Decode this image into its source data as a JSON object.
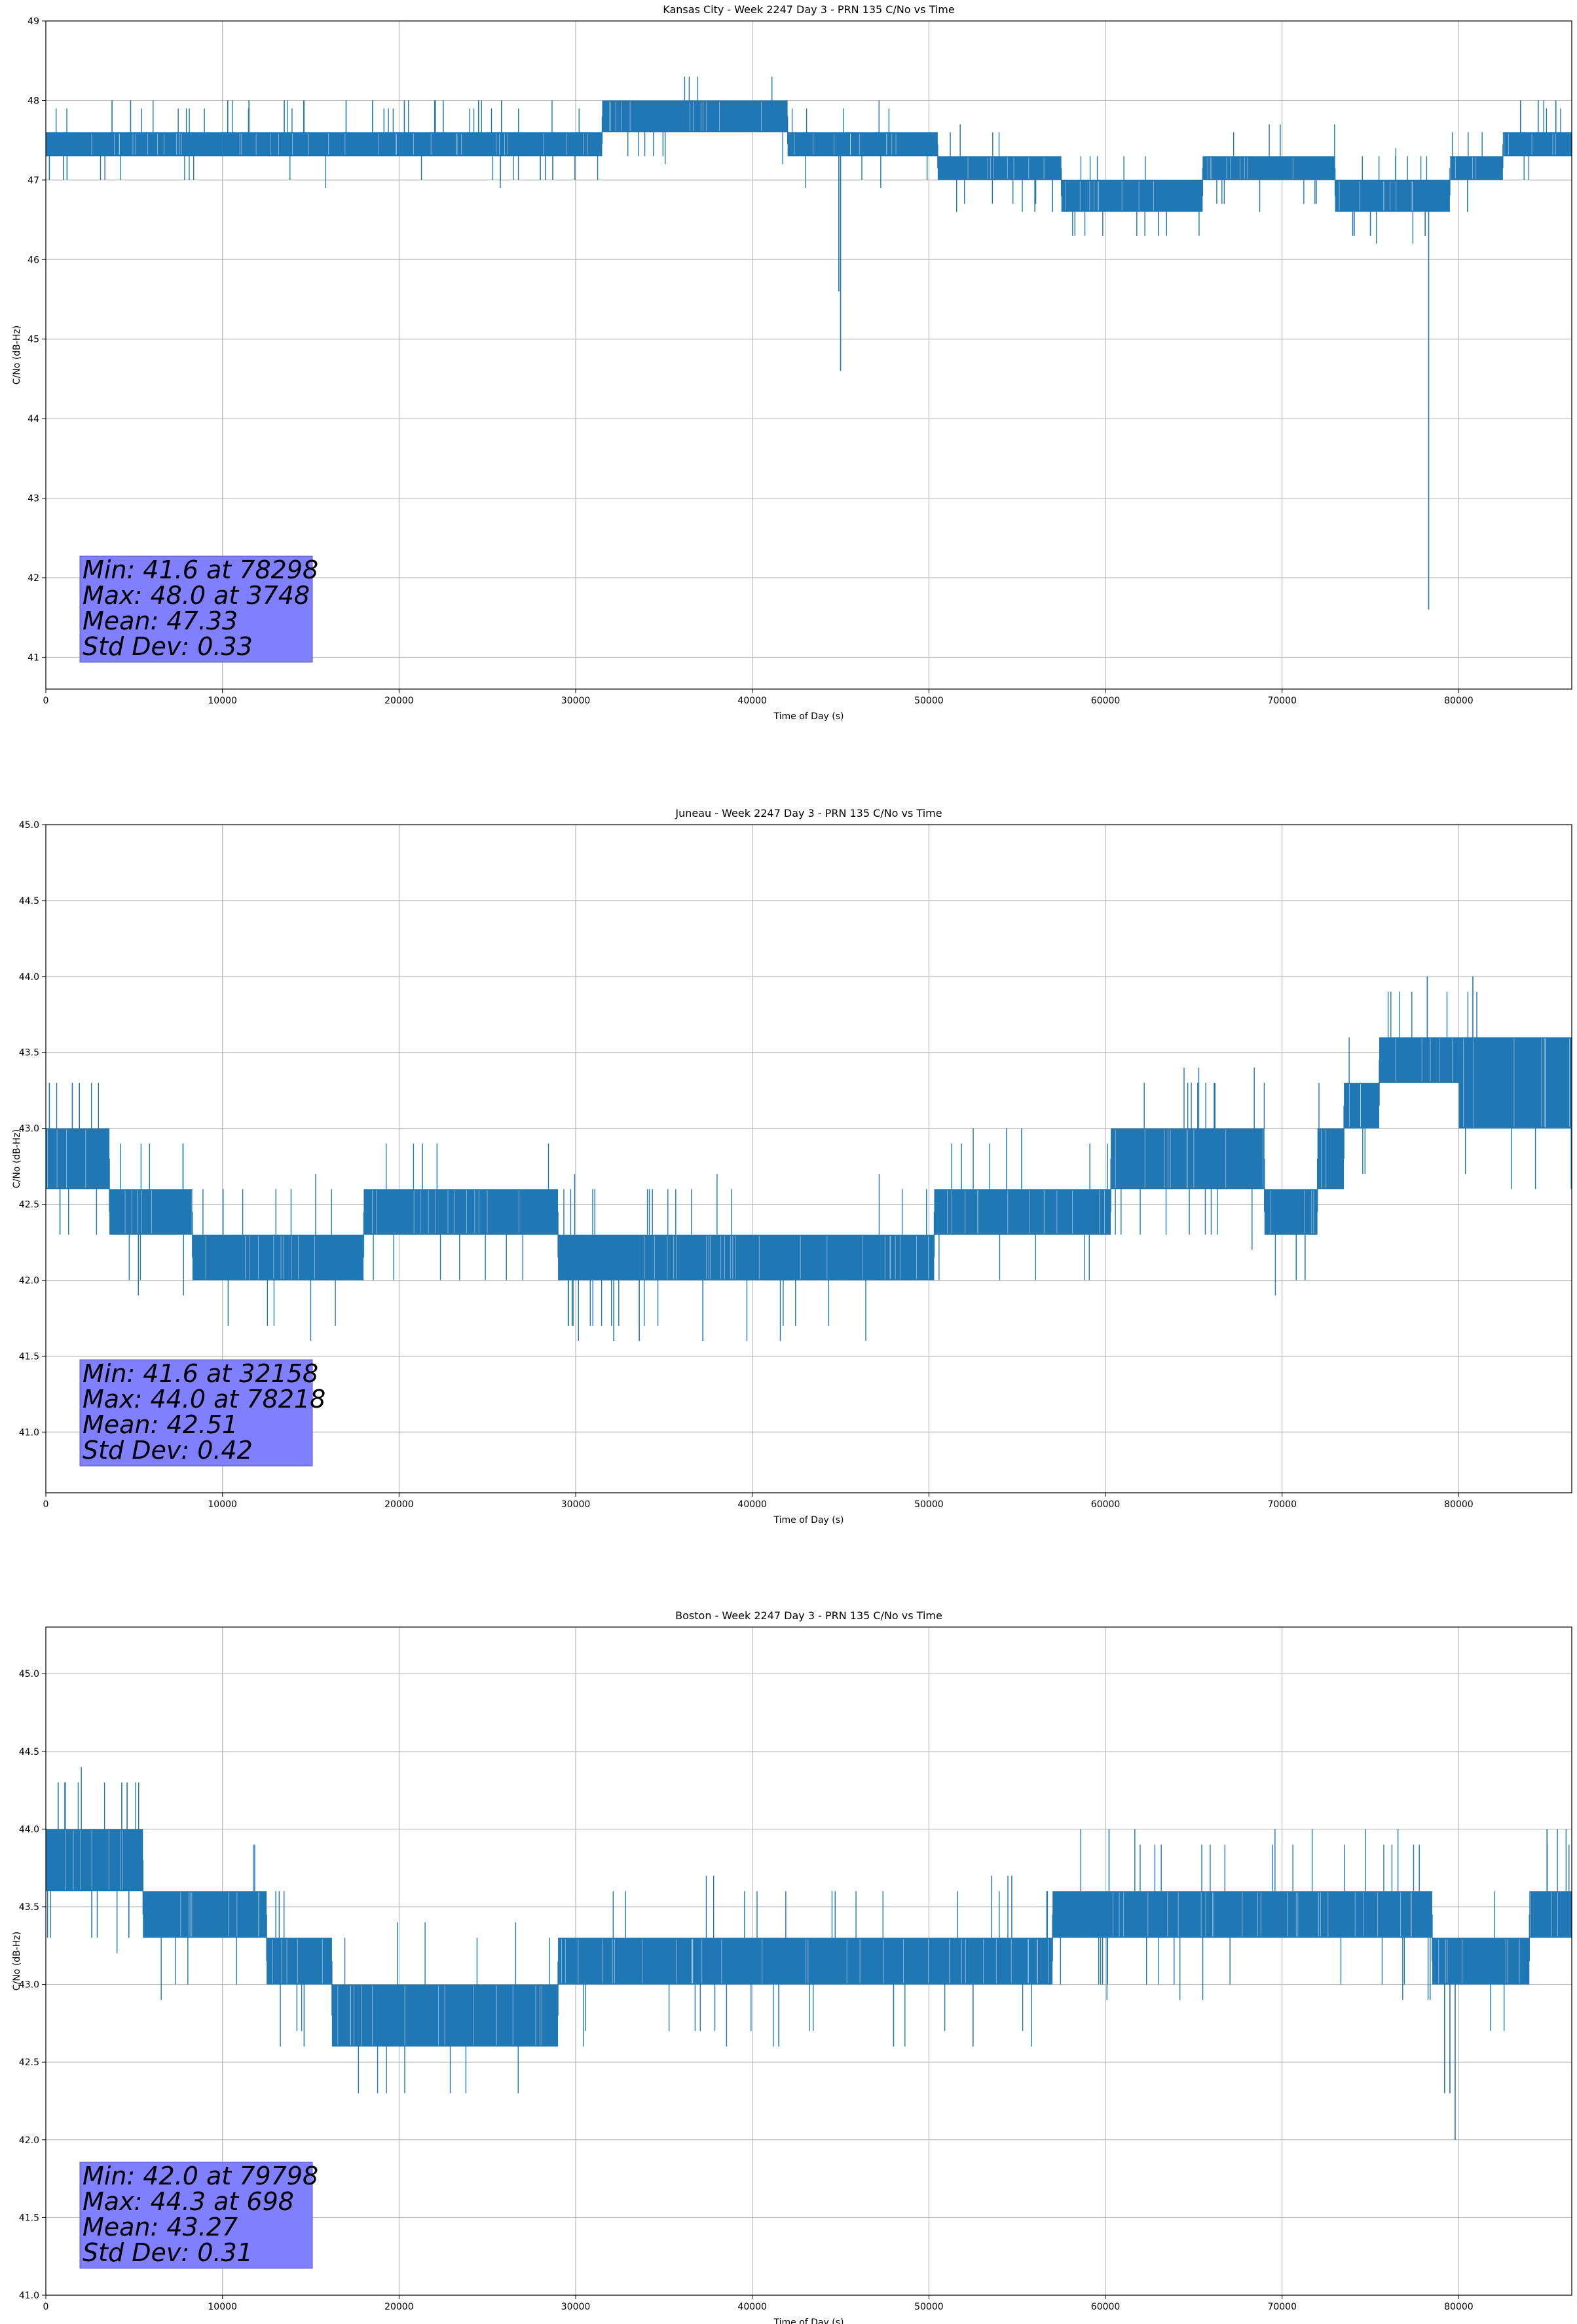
{
  "chart_data": [
    {
      "type": "line",
      "title": "Kansas City - Week 2247 Day 3 - PRN 135 C/No vs Time",
      "xlabel": "Time of Day (s)",
      "ylabel": "C/No (dB-Hz)",
      "xlim": [
        0,
        86400
      ],
      "ylim": [
        40.6,
        49
      ],
      "xticks": [
        0,
        10000,
        20000,
        30000,
        40000,
        50000,
        60000,
        70000,
        80000
      ],
      "yticks": [
        41,
        42,
        43,
        44,
        45,
        46,
        47,
        48,
        49
      ],
      "grid": true,
      "line_color": "#1f77b4",
      "stats_box_color": "#8080ff",
      "stats": [
        "Min: 41.6 at 78298",
        "Max: 48.0 at 3748",
        "Mean: 47.33",
        "Std Dev: 0.33"
      ],
      "bands": [
        {
          "x": [
            0,
            10000
          ],
          "y": [
            47.3,
            47.6
          ]
        },
        {
          "x": [
            10000,
            20000
          ],
          "y": [
            47.3,
            47.6
          ]
        },
        {
          "x": [
            20000,
            31500
          ],
          "y": [
            47.3,
            47.6
          ]
        },
        {
          "x": [
            31500,
            42000
          ],
          "y": [
            47.6,
            48.0
          ]
        },
        {
          "x": [
            42000,
            50500
          ],
          "y": [
            47.3,
            47.6
          ]
        },
        {
          "x": [
            50500,
            57500
          ],
          "y": [
            47.0,
            47.3
          ]
        },
        {
          "x": [
            57500,
            65500
          ],
          "y": [
            46.6,
            47.0
          ]
        },
        {
          "x": [
            65500,
            73000
          ],
          "y": [
            47.0,
            47.3
          ]
        },
        {
          "x": [
            73000,
            79500
          ],
          "y": [
            46.6,
            47.0
          ]
        },
        {
          "x": [
            79500,
            82500
          ],
          "y": [
            47.0,
            47.3
          ]
        },
        {
          "x": [
            82500,
            86400
          ],
          "y": [
            47.3,
            47.6
          ]
        }
      ],
      "spikes_up": [
        {
          "x": 3748,
          "y": 48.0
        },
        {
          "x": 4800,
          "y": 48.0
        },
        {
          "x": 10300,
          "y": 48.0
        },
        {
          "x": 11500,
          "y": 48.0
        },
        {
          "x": 13500,
          "y": 48.0
        },
        {
          "x": 14600,
          "y": 48.0
        },
        {
          "x": 17000,
          "y": 48.0
        },
        {
          "x": 18500,
          "y": 48.0
        },
        {
          "x": 20300,
          "y": 48.0
        },
        {
          "x": 22500,
          "y": 48.0
        },
        {
          "x": 24500,
          "y": 48.0
        },
        {
          "x": 25800,
          "y": 48.0
        },
        {
          "x": 83500,
          "y": 48.0
        },
        {
          "x": 84500,
          "y": 48.0
        },
        {
          "x": 85500,
          "y": 48.0
        }
      ],
      "spikes_down": [
        {
          "x": 200,
          "y": 47.0
        },
        {
          "x": 1000,
          "y": 47.0
        },
        {
          "x": 1200,
          "y": 47.0
        },
        {
          "x": 28000,
          "y": 47.0
        },
        {
          "x": 28300,
          "y": 47.0
        },
        {
          "x": 28700,
          "y": 47.0
        },
        {
          "x": 45000,
          "y": 44.6
        },
        {
          "x": 44900,
          "y": 45.6
        },
        {
          "x": 56000,
          "y": 46.6
        },
        {
          "x": 57000,
          "y": 46.6
        },
        {
          "x": 63000,
          "y": 46.3
        },
        {
          "x": 74000,
          "y": 46.3
        },
        {
          "x": 75000,
          "y": 46.3
        },
        {
          "x": 78100,
          "y": 46.3
        },
        {
          "x": 78298,
          "y": 41.6
        },
        {
          "x": 80500,
          "y": 46.6
        }
      ]
    },
    {
      "type": "line",
      "title": "Juneau - Week 2247 Day 3 - PRN 135 C/No vs Time",
      "xlabel": "Time of Day (s)",
      "ylabel": "C/No (dB-Hz)",
      "xlim": [
        0,
        86400
      ],
      "ylim": [
        40.6,
        45.0
      ],
      "xticks": [
        0,
        10000,
        20000,
        30000,
        40000,
        50000,
        60000,
        70000,
        80000
      ],
      "yticks": [
        41.0,
        41.5,
        42.0,
        42.5,
        43.0,
        43.5,
        44.0,
        44.5,
        45.0
      ],
      "grid": true,
      "line_color": "#1f77b4",
      "stats_box_color": "#8080ff",
      "stats": [
        "Min: 41.6 at 32158",
        "Max: 44.0 at 78218",
        "Mean: 42.51",
        "Std Dev: 0.42"
      ],
      "bands": [
        {
          "x": [
            0,
            3600
          ],
          "y": [
            42.6,
            43.0
          ]
        },
        {
          "x": [
            3600,
            8300
          ],
          "y": [
            42.3,
            42.6
          ]
        },
        {
          "x": [
            8300,
            18000
          ],
          "y": [
            42.0,
            42.3
          ]
        },
        {
          "x": [
            18000,
            29000
          ],
          "y": [
            42.3,
            42.6
          ]
        },
        {
          "x": [
            29000,
            50300
          ],
          "y": [
            42.0,
            42.3
          ]
        },
        {
          "x": [
            50300,
            56500
          ],
          "y": [
            42.3,
            42.6
          ]
        },
        {
          "x": [
            56500,
            60300
          ],
          "y": [
            42.3,
            42.6
          ]
        },
        {
          "x": [
            60300,
            69000
          ],
          "y": [
            42.6,
            43.0
          ]
        },
        {
          "x": [
            69000,
            72000
          ],
          "y": [
            42.3,
            42.6
          ]
        },
        {
          "x": [
            72000,
            73500
          ],
          "y": [
            42.6,
            43.0
          ]
        },
        {
          "x": [
            73500,
            75500
          ],
          "y": [
            43.0,
            43.3
          ]
        },
        {
          "x": [
            75500,
            80000
          ],
          "y": [
            43.3,
            43.6
          ]
        },
        {
          "x": [
            80000,
            86400
          ],
          "y": [
            43.0,
            43.6
          ]
        }
      ],
      "spikes_up": [
        {
          "x": 200,
          "y": 43.3
        },
        {
          "x": 1500,
          "y": 43.3
        },
        {
          "x": 1900,
          "y": 43.3
        },
        {
          "x": 66200,
          "y": 43.3
        },
        {
          "x": 78218,
          "y": 44.0
        },
        {
          "x": 80800,
          "y": 44.0
        }
      ],
      "spikes_down": [
        {
          "x": 800,
          "y": 42.3
        },
        {
          "x": 32158,
          "y": 41.6
        },
        {
          "x": 33600,
          "y": 41.6
        },
        {
          "x": 37200,
          "y": 41.6
        },
        {
          "x": 70800,
          "y": 42.0
        },
        {
          "x": 71300,
          "y": 42.0
        }
      ]
    },
    {
      "type": "line",
      "title": "Boston - Week 2247 Day 3 - PRN 135 C/No vs Time",
      "xlabel": "Time of Day (s)",
      "ylabel": "C/No (dB-Hz)",
      "xlim": [
        0,
        86400
      ],
      "ylim": [
        41.0,
        45.3
      ],
      "xticks": [
        0,
        10000,
        20000,
        30000,
        40000,
        50000,
        60000,
        70000,
        80000
      ],
      "yticks": [
        41.0,
        41.5,
        42.0,
        42.5,
        43.0,
        43.5,
        44.0,
        44.5,
        45.0
      ],
      "grid": true,
      "line_color": "#1f77b4",
      "stats_box_color": "#8080ff",
      "stats": [
        "Min: 42.0 at 79798",
        "Max: 44.3 at 698",
        "Mean: 43.27",
        "Std Dev: 0.31"
      ],
      "bands": [
        {
          "x": [
            0,
            5500
          ],
          "y": [
            43.6,
            44.0
          ]
        },
        {
          "x": [
            5500,
            12500
          ],
          "y": [
            43.3,
            43.6
          ]
        },
        {
          "x": [
            12500,
            16200
          ],
          "y": [
            43.0,
            43.3
          ]
        },
        {
          "x": [
            16200,
            29000
          ],
          "y": [
            42.6,
            43.0
          ]
        },
        {
          "x": [
            29000,
            57000
          ],
          "y": [
            43.0,
            43.3
          ]
        },
        {
          "x": [
            57000,
            78500
          ],
          "y": [
            43.3,
            43.6
          ]
        },
        {
          "x": [
            78500,
            84000
          ],
          "y": [
            43.0,
            43.3
          ]
        },
        {
          "x": [
            84000,
            86400
          ],
          "y": [
            43.3,
            43.6
          ]
        }
      ],
      "spikes_up": [
        {
          "x": 698,
          "y": 44.3
        },
        {
          "x": 1100,
          "y": 44.3
        },
        {
          "x": 4300,
          "y": 44.3
        },
        {
          "x": 4600,
          "y": 44.3
        },
        {
          "x": 60200,
          "y": 44.0
        },
        {
          "x": 85000,
          "y": 44.0
        }
      ],
      "spikes_down": [
        {
          "x": 2600,
          "y": 43.3
        },
        {
          "x": 4700,
          "y": 43.3
        },
        {
          "x": 41500,
          "y": 42.6
        },
        {
          "x": 48000,
          "y": 42.6
        },
        {
          "x": 52500,
          "y": 42.6
        },
        {
          "x": 79200,
          "y": 42.3
        },
        {
          "x": 79500,
          "y": 42.3
        },
        {
          "x": 79798,
          "y": 42.0
        }
      ]
    }
  ]
}
